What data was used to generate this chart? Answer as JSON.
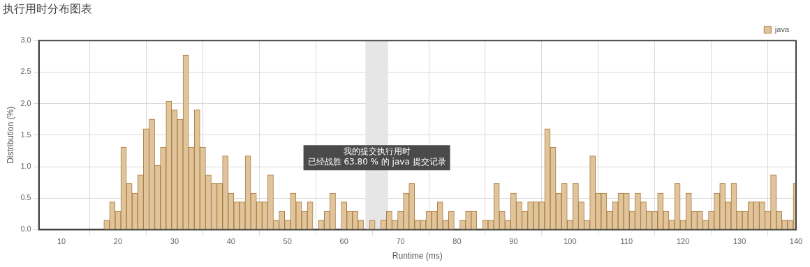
{
  "chart_data": {
    "type": "histogram",
    "title": "执行用时分布图表",
    "xlabel": "Runtime (ms)",
    "ylabel": "Distribution (%)",
    "bins": [
      17.5,
      18.5,
      19.5,
      20.5,
      21.5,
      22.5,
      23.5,
      24.5,
      25.5,
      26.5,
      27.5,
      28.5,
      29.5,
      30.5,
      31.5,
      32.5,
      33.5,
      34.5,
      35.5,
      36.5,
      37.5,
      38.5,
      39.5,
      40.5,
      41.5,
      42.5,
      43.5,
      44.5,
      45.5,
      46.5,
      47.5,
      48.5,
      49.5,
      50.5,
      51.5,
      52.5,
      53.5,
      54.5,
      55.5,
      56.5,
      57.5,
      58.5,
      59.5,
      60.5,
      61.5,
      62.5,
      63.5,
      64.5,
      65.5,
      66.5,
      67.5,
      68.5,
      69.5,
      70.5,
      71.5,
      72.5,
      73.5,
      74.5,
      75.5,
      76.5,
      77.5,
      78.5,
      79.5,
      80.5,
      81.5,
      82.5,
      83.5,
      84.5,
      85.5,
      86.5,
      87.5,
      88.5,
      89.5,
      90.5,
      91.5,
      92.5,
      93.5,
      94.5,
      95.5,
      96.5,
      97.5,
      98.5,
      99.5,
      100.5,
      101.5,
      102.5,
      103.5,
      104.5,
      105.5,
      106.5,
      107.5,
      108.5,
      109.5,
      110.5,
      111.5,
      112.5,
      113.5,
      114.5,
      115.5,
      116.5,
      117.5,
      118.5,
      119.5,
      120.5,
      121.5,
      122.5,
      123.5,
      124.5,
      125.5,
      126.5,
      127.5,
      128.5,
      129.5,
      130.5,
      131.5,
      132.5,
      133.5,
      134.5,
      135.5,
      136.5,
      137.5,
      138.5,
      139.5,
      140.5
    ],
    "series": [
      {
        "name": "java",
        "color": "#e0c49c",
        "values": [
          0.15,
          0.44,
          0.29,
          1.31,
          0.73,
          0.58,
          0.87,
          1.6,
          1.75,
          1.02,
          1.31,
          2.04,
          1.9,
          1.75,
          2.77,
          1.31,
          1.9,
          1.31,
          0.87,
          0.73,
          0.73,
          1.17,
          0.58,
          0.44,
          0.44,
          1.17,
          0.58,
          0.44,
          0.44,
          0.87,
          0.15,
          0.29,
          0.15,
          0.58,
          0.44,
          0.29,
          0.44,
          0,
          0.15,
          0.29,
          0.58,
          0,
          0.44,
          0.29,
          0.29,
          0.15,
          0,
          0.15,
          0,
          0.15,
          0.29,
          0.15,
          0.29,
          0.58,
          0.73,
          0.15,
          0.15,
          0.29,
          0.29,
          0.44,
          0.15,
          0.29,
          0,
          0.15,
          0.29,
          0.29,
          0,
          0.15,
          0.15,
          0.73,
          0.29,
          0.15,
          0.58,
          0.44,
          0.29,
          0.44,
          0.44,
          0.44,
          1.6,
          1.31,
          0.58,
          0.73,
          0.15,
          0.73,
          0.44,
          0.15,
          1.17,
          0.58,
          0.58,
          0.29,
          0.44,
          0.58,
          0.58,
          0.29,
          0.58,
          0.44,
          0.29,
          0.29,
          0.58,
          0.29,
          0.15,
          0.73,
          0.15,
          0.58,
          0.29,
          0.29,
          0.15,
          0.29,
          0.58,
          0.73,
          0.44,
          0.73,
          0.29,
          0.29,
          0.44,
          0.44,
          0.44,
          0.29,
          0.87,
          0.29,
          0.15,
          0.15,
          0.73
        ]
      }
    ],
    "xlim": [
      6,
      140
    ],
    "xticks": [
      10,
      20,
      30,
      40,
      50,
      60,
      70,
      80,
      90,
      100,
      110,
      120,
      130,
      140
    ],
    "ylim": [
      0,
      3
    ],
    "yticks": [
      {
        "value": 0,
        "label": "0.0"
      },
      {
        "value": 0.5,
        "label": "0.5"
      },
      {
        "value": 1,
        "label": "1.0"
      },
      {
        "value": 1.5,
        "label": "1.5"
      },
      {
        "value": 2,
        "label": "2.0"
      },
      {
        "value": 2.5,
        "label": "2.5"
      },
      {
        "value": 3,
        "label": "3.0"
      }
    ],
    "bands": [
      {
        "axis": "x",
        "from": 63.8,
        "to": 67.8,
        "color": "#e6e6e6"
      }
    ],
    "annotations": [
      "我的提交执行用时",
      "已经战胜 63.80 % 的 java 提交记录"
    ],
    "grid": true,
    "legend": "top right"
  }
}
